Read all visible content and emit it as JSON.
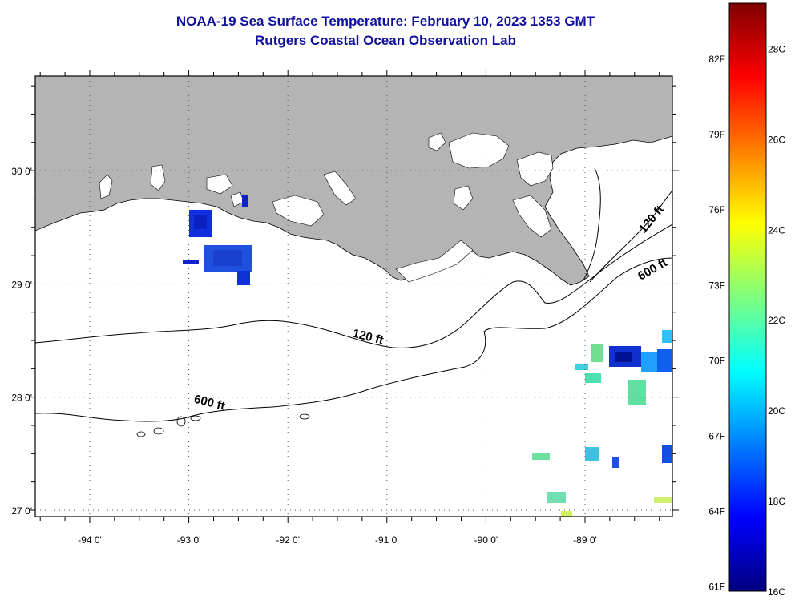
{
  "title": "NOAA-19 Sea Surface Temperature:  February 10, 2023 1353 GMT",
  "subtitle": "Rutgers Coastal Ocean Observation Lab",
  "map": {
    "lon_range": [
      -94.5,
      -87.8
    ],
    "lat_range": [
      26.95,
      30.85
    ],
    "lon_ticks": [
      {
        "value": -94,
        "label": "-94 0'"
      },
      {
        "value": -93,
        "label": "-93 0'"
      },
      {
        "value": -92,
        "label": "-92 0'"
      },
      {
        "value": -91,
        "label": "-91 0'"
      },
      {
        "value": -90,
        "label": "-90 0'"
      },
      {
        "value": -89,
        "label": "-89 0'"
      }
    ],
    "lat_ticks": [
      {
        "value": 30,
        "label": "30 0'"
      },
      {
        "value": 29,
        "label": "29 0'"
      },
      {
        "value": 28,
        "label": "28 0'"
      },
      {
        "value": 27,
        "label": "27 0'"
      }
    ],
    "contour_labels": [
      {
        "text": "120 ft",
        "lon": -91.2,
        "lat": 28.5,
        "rotate": 14
      },
      {
        "text": "600 ft",
        "lon": -92.8,
        "lat": 27.92,
        "rotate": 14
      },
      {
        "text": "120 ft",
        "lon": -88.3,
        "lat": 29.55,
        "rotate": -50
      },
      {
        "text": "600 ft",
        "lon": -88.3,
        "lat": 29.1,
        "rotate": -30
      }
    ],
    "colors": {
      "land": "#b4b4b4",
      "water": "#ffffff",
      "grid": "#555555"
    }
  },
  "colorbar": {
    "fahrenheit_labels": [
      "82F",
      "79F",
      "76F",
      "73F",
      "70F",
      "67F",
      "64F",
      "61F"
    ],
    "celsius_labels": [
      "28C",
      "26C",
      "24C",
      "22C",
      "20C",
      "18C",
      "16C"
    ],
    "min_c": 16,
    "max_c": 29,
    "gradient": [
      "#00007f",
      "#0000ff",
      "#007fff",
      "#00ffff",
      "#7fff7f",
      "#ffff00",
      "#ff7f00",
      "#ff0000",
      "#7f0000"
    ]
  }
}
